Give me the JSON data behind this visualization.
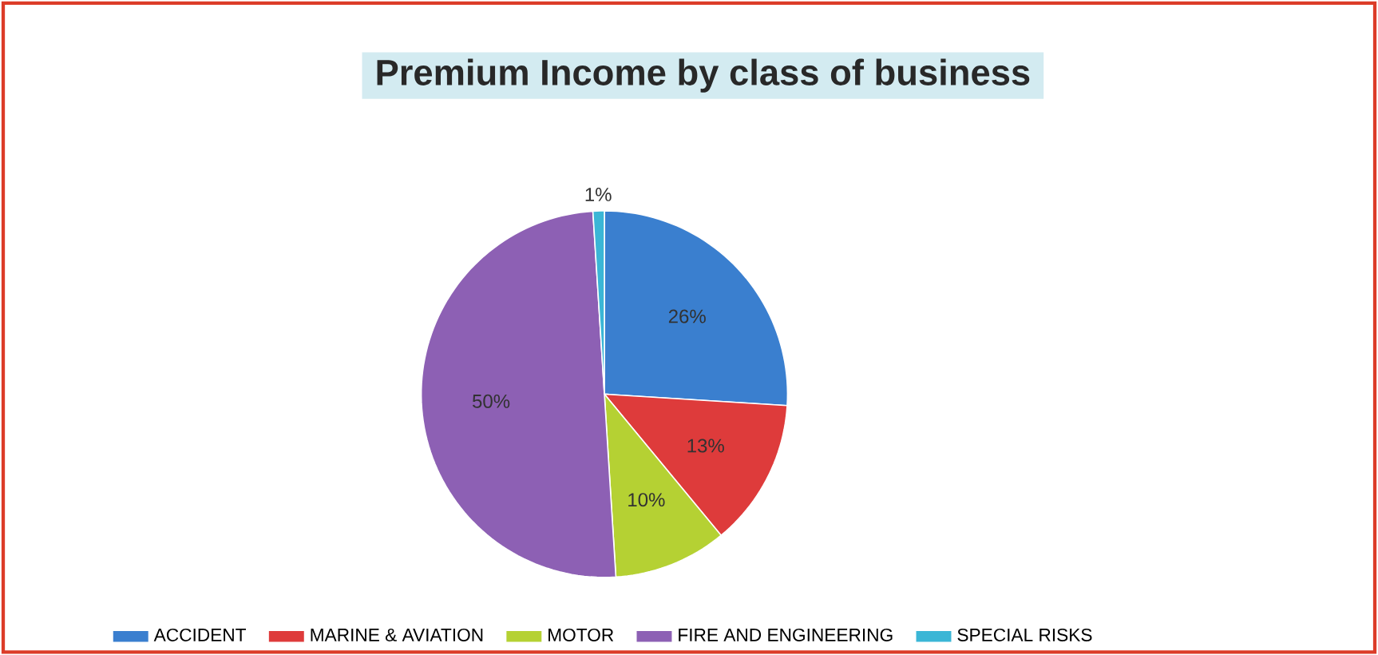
{
  "chart_data": {
    "type": "pie",
    "title": "Premium Income by class of business",
    "categories": [
      "ACCIDENT",
      "MARINE & AVIATION",
      "MOTOR",
      "FIRE AND ENGINEERING",
      "SPECIAL RISKS"
    ],
    "values": [
      26,
      13,
      10,
      50,
      1
    ],
    "value_labels": [
      "26%",
      "13%",
      "10%",
      "50%",
      "1%"
    ],
    "colors": [
      "#3a7fcf",
      "#de3b3b",
      "#b5d133",
      "#8d60b4",
      "#3bb6d6"
    ],
    "legend": "bottom"
  }
}
